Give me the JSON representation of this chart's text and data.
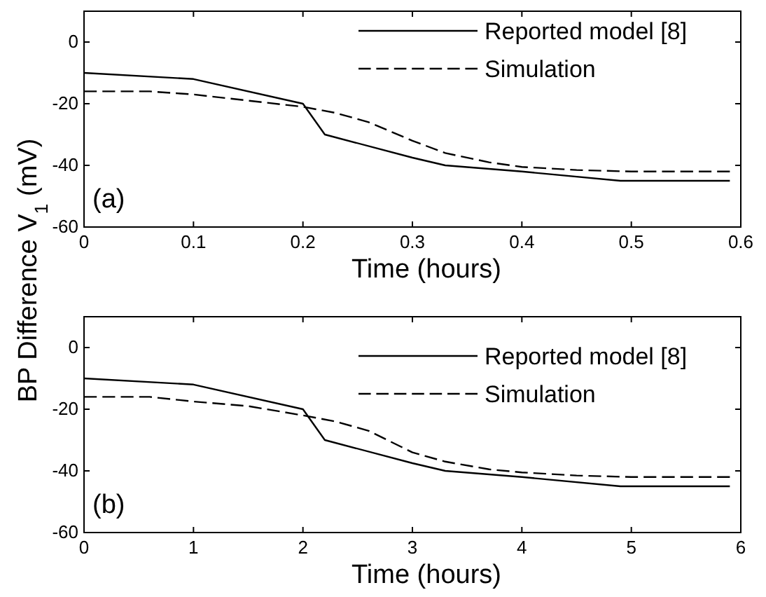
{
  "chart_data": [
    {
      "type": "line",
      "ylabel": "BP Difference V$_{1}$ (mV)",
      "xlabel": "Time (hours)",
      "xlim": [
        0,
        0.6
      ],
      "xticks": [
        0,
        0.1,
        0.2,
        0.3,
        0.4,
        0.5,
        0.6
      ],
      "ylim": [
        -60,
        10
      ],
      "yticks": [
        -60,
        -40,
        -20,
        0
      ],
      "legend": "top right",
      "annotations": [
        "(a)"
      ],
      "series": [
        {
          "name": "Reported model [8]",
          "color": "#000000",
          "line_style": "solid",
          "x": [
            0,
            0.1,
            0.2,
            0.22,
            0.3,
            0.33,
            0.4,
            0.49,
            0.59
          ],
          "values": [
            -10,
            -12,
            -20,
            -30,
            -37.5,
            -40,
            -42,
            -45,
            -45
          ]
        },
        {
          "name": "Simulation",
          "color": "#000000",
          "line_style": "dashed",
          "x": [
            0,
            0.06,
            0.1,
            0.15,
            0.2,
            0.23,
            0.26,
            0.3,
            0.33,
            0.37,
            0.4,
            0.45,
            0.5,
            0.59
          ],
          "values": [
            -16,
            -16,
            -17,
            -19,
            -21,
            -23,
            -26,
            -32,
            -36,
            -39,
            -40.5,
            -41.5,
            -42,
            -42
          ]
        }
      ]
    },
    {
      "type": "line",
      "xlabel": "Time (hours)",
      "xlim": [
        0,
        6
      ],
      "xticks": [
        0,
        1,
        2,
        3,
        4,
        5,
        6
      ],
      "ylim": [
        -60,
        10
      ],
      "yticks": [
        -60,
        -40,
        -20,
        0
      ],
      "legend": "top right",
      "annotations": [
        "(b)"
      ],
      "series": [
        {
          "name": "Reported model [8]",
          "color": "#000000",
          "line_style": "solid",
          "x": [
            0,
            1,
            2,
            2.2,
            3,
            3.3,
            4,
            4.9,
            5.9
          ],
          "values": [
            -10,
            -12,
            -20,
            -30,
            -37.5,
            -40,
            -42,
            -45,
            -45
          ]
        },
        {
          "name": "Simulation",
          "color": "#000000",
          "line_style": "dashed",
          "x": [
            0,
            0.6,
            1,
            1.5,
            2,
            2.3,
            2.6,
            3,
            3.3,
            3.7,
            4,
            4.5,
            5,
            5.9
          ],
          "values": [
            -16,
            -16,
            -17.5,
            -19,
            -22,
            -24,
            -27,
            -34,
            -37,
            -39.5,
            -40.5,
            -41.5,
            -42,
            -42
          ]
        }
      ]
    }
  ]
}
